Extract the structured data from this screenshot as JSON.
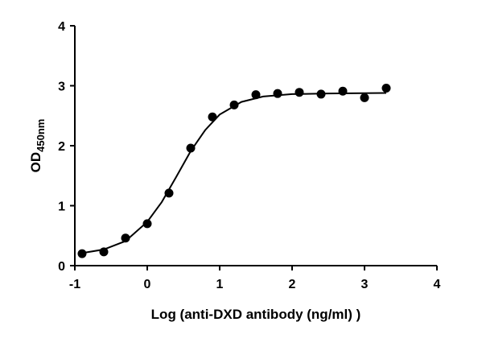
{
  "chart_data": {
    "type": "scatter",
    "y_label_main": "OD",
    "y_label_sub": "450nm",
    "x_label": "Log (anti-DXD antibody (ng/ml) )",
    "points": {
      "x": [
        -0.9,
        -0.6,
        -0.3,
        0,
        0.3,
        0.6,
        0.9,
        1.2,
        1.5,
        1.8,
        2.1,
        2.4,
        2.7,
        3.0,
        3.3
      ],
      "values": [
        0.2,
        0.23,
        0.46,
        0.7,
        1.21,
        1.96,
        2.48,
        2.68,
        2.85,
        2.87,
        2.89,
        2.86,
        2.91,
        2.8,
        2.96
      ],
      "color": "#000000"
    },
    "curve": {
      "x": [
        -0.9,
        -0.6,
        -0.3,
        0,
        0.2,
        0.4,
        0.6,
        0.8,
        1.0,
        1.3,
        1.6,
        2.0,
        2.5,
        3.3
      ],
      "values": [
        0.21,
        0.27,
        0.41,
        0.73,
        1.06,
        1.48,
        1.91,
        2.26,
        2.52,
        2.73,
        2.82,
        2.86,
        2.87,
        2.88
      ],
      "color": "#000000"
    },
    "xlim": [
      -1,
      4
    ],
    "xticks": [
      -1,
      0,
      1,
      2,
      3,
      4
    ],
    "ylim": [
      0,
      4
    ],
    "yticks": [
      0,
      1,
      2,
      3,
      4
    ]
  }
}
